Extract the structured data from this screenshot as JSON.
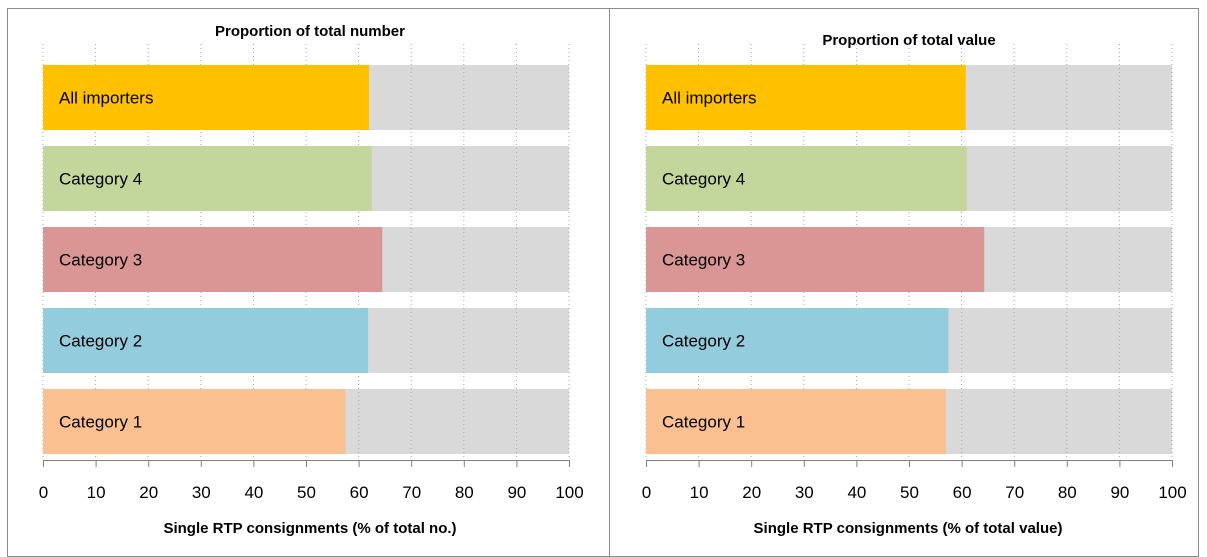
{
  "chart_data": [
    {
      "type": "bar",
      "orientation": "horizontal",
      "title": "Proportion of total number",
      "xlabel": "Single RTP consignments (% of total no.)",
      "xlim": [
        0,
        100
      ],
      "xticks": [
        "0",
        "10",
        "20",
        "30",
        "40",
        "50",
        "60",
        "70",
        "80",
        "90",
        "100"
      ],
      "categories": [
        "All importers",
        "Category 4",
        "Category 3",
        "Category 2",
        "Category 1"
      ],
      "values": [
        62,
        62.5,
        64.5,
        61.8,
        57.5
      ],
      "colors": [
        "#FFC000",
        "#C3D69B",
        "#D99694",
        "#93CDDD",
        "#FAC090"
      ],
      "background_color": "#D9D9D9",
      "grid": true
    },
    {
      "type": "bar",
      "orientation": "horizontal",
      "title": "Proportion of total value",
      "xlabel": "Single RTP consignments (% of total value)",
      "xlim": [
        0,
        100
      ],
      "xticks": [
        "0",
        "10",
        "20",
        "30",
        "40",
        "50",
        "60",
        "70",
        "80",
        "90",
        "100"
      ],
      "categories": [
        "All importers",
        "Category 4",
        "Category 3",
        "Category 2",
        "Category 1"
      ],
      "values": [
        60.8,
        61,
        64.3,
        57.5,
        57
      ],
      "colors": [
        "#FFC000",
        "#C3D69B",
        "#D99694",
        "#93CDDD",
        "#FAC090"
      ],
      "background_color": "#D9D9D9",
      "grid": true
    }
  ]
}
